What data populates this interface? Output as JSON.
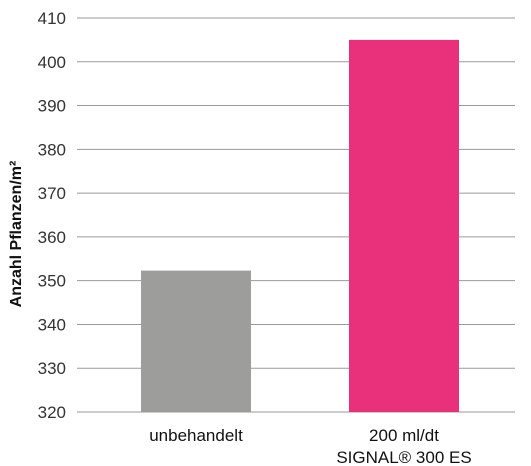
{
  "chart_data": {
    "type": "bar",
    "title": "",
    "xlabel": "",
    "ylabel": "Anzahl Pflanzen/m²",
    "ylim": [
      320,
      410
    ],
    "yticks": [
      320,
      330,
      340,
      350,
      360,
      370,
      380,
      390,
      400,
      410
    ],
    "grid": "horizontal",
    "categories": [
      [
        "unbehandelt"
      ],
      [
        "200 ml/dt",
        "SIGNAL® 300 ES"
      ]
    ],
    "values": [
      352.3,
      405
    ],
    "colors": [
      "#9d9e9c",
      "#e8317a"
    ]
  }
}
